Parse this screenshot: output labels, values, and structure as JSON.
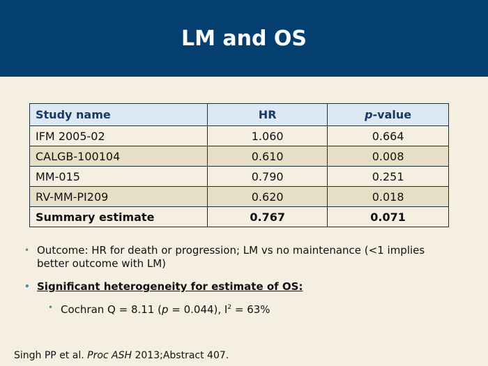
{
  "slide": {
    "title": "LM and OS",
    "colors": {
      "header": "#053f70",
      "background": "#f4efe0",
      "table_header": "#dce8f2",
      "row_alt": "#e6dfc6",
      "bullet": "#3f8fb0"
    }
  },
  "table": {
    "headers": [
      "Study name",
      "HR",
      "p",
      "-value"
    ],
    "rows": [
      {
        "name": "IFM 2005-02",
        "hr": "1.060",
        "p": "0.664"
      },
      {
        "name": "CALGB-100104",
        "hr": "0.610",
        "p": "0.008"
      },
      {
        "name": "MM-015",
        "hr": "0.790",
        "p": "0.251"
      },
      {
        "name": "RV-MM-PI209",
        "hr": "0.620",
        "p": "0.018"
      }
    ],
    "summary": {
      "name": "Summary estimate",
      "hr": "0.767",
      "p": "0.071"
    }
  },
  "bullets": {
    "b1": "Outcome: HR for death or progression; LM vs no maintenance (<1 implies better outcome with LM)",
    "b2": "Significant heterogeneity for estimate of OS:",
    "b3_prefix": "Cochran Q = 8.11 (",
    "b3_p": "p",
    "b3_mid": " = 0.044), I",
    "b3_sup": "2",
    "b3_suffix": " = 63%"
  },
  "citation": {
    "authors": "Singh PP et al. ",
    "journal": "Proc ASH",
    "rest": " 2013;Abstract 407."
  }
}
